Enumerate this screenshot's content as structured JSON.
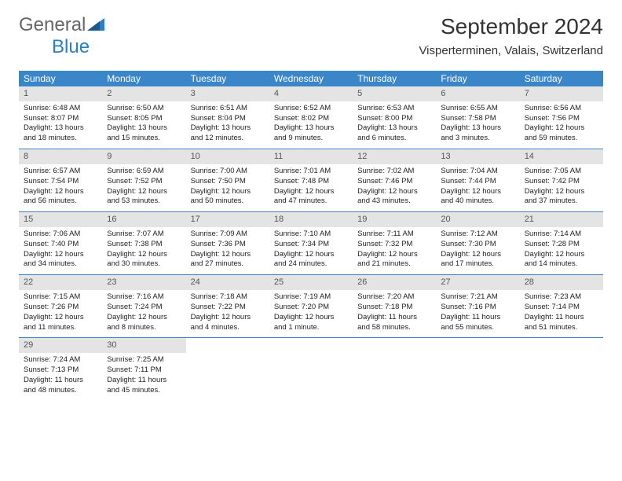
{
  "logo": {
    "main": "General",
    "sub": "Blue"
  },
  "title": "September 2024",
  "location": "Visperterminen, Valais, Switzerland",
  "colors": {
    "header_bg": "#3a86c8",
    "header_text": "#ffffff",
    "daynum_bg": "#e4e4e4",
    "row_border": "#3a86c8",
    "logo_blue": "#2a7ec5",
    "logo_gray": "#666666"
  },
  "day_headers": [
    "Sunday",
    "Monday",
    "Tuesday",
    "Wednesday",
    "Thursday",
    "Friday",
    "Saturday"
  ],
  "weeks": [
    [
      {
        "n": "1",
        "sr": "6:48 AM",
        "ss": "8:07 PM",
        "dl": "13 hours and 18 minutes."
      },
      {
        "n": "2",
        "sr": "6:50 AM",
        "ss": "8:05 PM",
        "dl": "13 hours and 15 minutes."
      },
      {
        "n": "3",
        "sr": "6:51 AM",
        "ss": "8:04 PM",
        "dl": "13 hours and 12 minutes."
      },
      {
        "n": "4",
        "sr": "6:52 AM",
        "ss": "8:02 PM",
        "dl": "13 hours and 9 minutes."
      },
      {
        "n": "5",
        "sr": "6:53 AM",
        "ss": "8:00 PM",
        "dl": "13 hours and 6 minutes."
      },
      {
        "n": "6",
        "sr": "6:55 AM",
        "ss": "7:58 PM",
        "dl": "13 hours and 3 minutes."
      },
      {
        "n": "7",
        "sr": "6:56 AM",
        "ss": "7:56 PM",
        "dl": "12 hours and 59 minutes."
      }
    ],
    [
      {
        "n": "8",
        "sr": "6:57 AM",
        "ss": "7:54 PM",
        "dl": "12 hours and 56 minutes."
      },
      {
        "n": "9",
        "sr": "6:59 AM",
        "ss": "7:52 PM",
        "dl": "12 hours and 53 minutes."
      },
      {
        "n": "10",
        "sr": "7:00 AM",
        "ss": "7:50 PM",
        "dl": "12 hours and 50 minutes."
      },
      {
        "n": "11",
        "sr": "7:01 AM",
        "ss": "7:48 PM",
        "dl": "12 hours and 47 minutes."
      },
      {
        "n": "12",
        "sr": "7:02 AM",
        "ss": "7:46 PM",
        "dl": "12 hours and 43 minutes."
      },
      {
        "n": "13",
        "sr": "7:04 AM",
        "ss": "7:44 PM",
        "dl": "12 hours and 40 minutes."
      },
      {
        "n": "14",
        "sr": "7:05 AM",
        "ss": "7:42 PM",
        "dl": "12 hours and 37 minutes."
      }
    ],
    [
      {
        "n": "15",
        "sr": "7:06 AM",
        "ss": "7:40 PM",
        "dl": "12 hours and 34 minutes."
      },
      {
        "n": "16",
        "sr": "7:07 AM",
        "ss": "7:38 PM",
        "dl": "12 hours and 30 minutes."
      },
      {
        "n": "17",
        "sr": "7:09 AM",
        "ss": "7:36 PM",
        "dl": "12 hours and 27 minutes."
      },
      {
        "n": "18",
        "sr": "7:10 AM",
        "ss": "7:34 PM",
        "dl": "12 hours and 24 minutes."
      },
      {
        "n": "19",
        "sr": "7:11 AM",
        "ss": "7:32 PM",
        "dl": "12 hours and 21 minutes."
      },
      {
        "n": "20",
        "sr": "7:12 AM",
        "ss": "7:30 PM",
        "dl": "12 hours and 17 minutes."
      },
      {
        "n": "21",
        "sr": "7:14 AM",
        "ss": "7:28 PM",
        "dl": "12 hours and 14 minutes."
      }
    ],
    [
      {
        "n": "22",
        "sr": "7:15 AM",
        "ss": "7:26 PM",
        "dl": "12 hours and 11 minutes."
      },
      {
        "n": "23",
        "sr": "7:16 AM",
        "ss": "7:24 PM",
        "dl": "12 hours and 8 minutes."
      },
      {
        "n": "24",
        "sr": "7:18 AM",
        "ss": "7:22 PM",
        "dl": "12 hours and 4 minutes."
      },
      {
        "n": "25",
        "sr": "7:19 AM",
        "ss": "7:20 PM",
        "dl": "12 hours and 1 minute."
      },
      {
        "n": "26",
        "sr": "7:20 AM",
        "ss": "7:18 PM",
        "dl": "11 hours and 58 minutes."
      },
      {
        "n": "27",
        "sr": "7:21 AM",
        "ss": "7:16 PM",
        "dl": "11 hours and 55 minutes."
      },
      {
        "n": "28",
        "sr": "7:23 AM",
        "ss": "7:14 PM",
        "dl": "11 hours and 51 minutes."
      }
    ],
    [
      {
        "n": "29",
        "sr": "7:24 AM",
        "ss": "7:13 PM",
        "dl": "11 hours and 48 minutes."
      },
      {
        "n": "30",
        "sr": "7:25 AM",
        "ss": "7:11 PM",
        "dl": "11 hours and 45 minutes."
      },
      {
        "empty": true
      },
      {
        "empty": true
      },
      {
        "empty": true
      },
      {
        "empty": true
      },
      {
        "empty": true
      }
    ]
  ],
  "labels": {
    "sunrise": "Sunrise:",
    "sunset": "Sunset:",
    "daylight": "Daylight:"
  }
}
